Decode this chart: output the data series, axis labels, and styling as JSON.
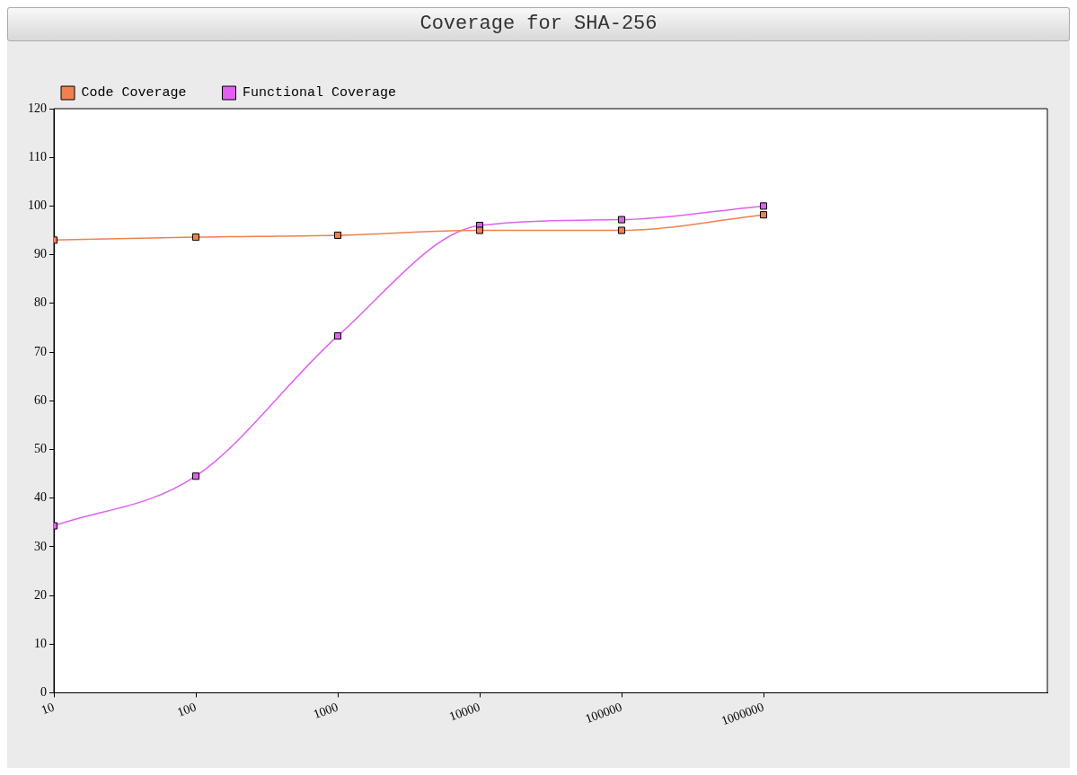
{
  "chart_data": {
    "type": "line",
    "title": "Coverage for SHA-256",
    "x": [
      10,
      100,
      1000,
      10000,
      100000,
      1000000
    ],
    "series": [
      {
        "name": "Code Coverage",
        "color": "#f08050",
        "values": [
          93,
          93.6,
          94,
          95,
          95,
          98.2
        ]
      },
      {
        "name": "Functional Coverage",
        "color": "#e060f0",
        "values": [
          34.3,
          44.5,
          73.3,
          96,
          97.2,
          100
        ]
      }
    ],
    "log": "x",
    "xlim": [
      10,
      100000000
    ],
    "xticks": [
      10,
      100,
      1000,
      10000,
      100000,
      1000000
    ],
    "ylim": [
      0,
      120
    ],
    "yticks": [
      0,
      10,
      20,
      30,
      40,
      50,
      60,
      70,
      80,
      90,
      100,
      110,
      120
    ],
    "grid": false,
    "legend": "top left",
    "marker": "square",
    "line_style": "solid"
  }
}
